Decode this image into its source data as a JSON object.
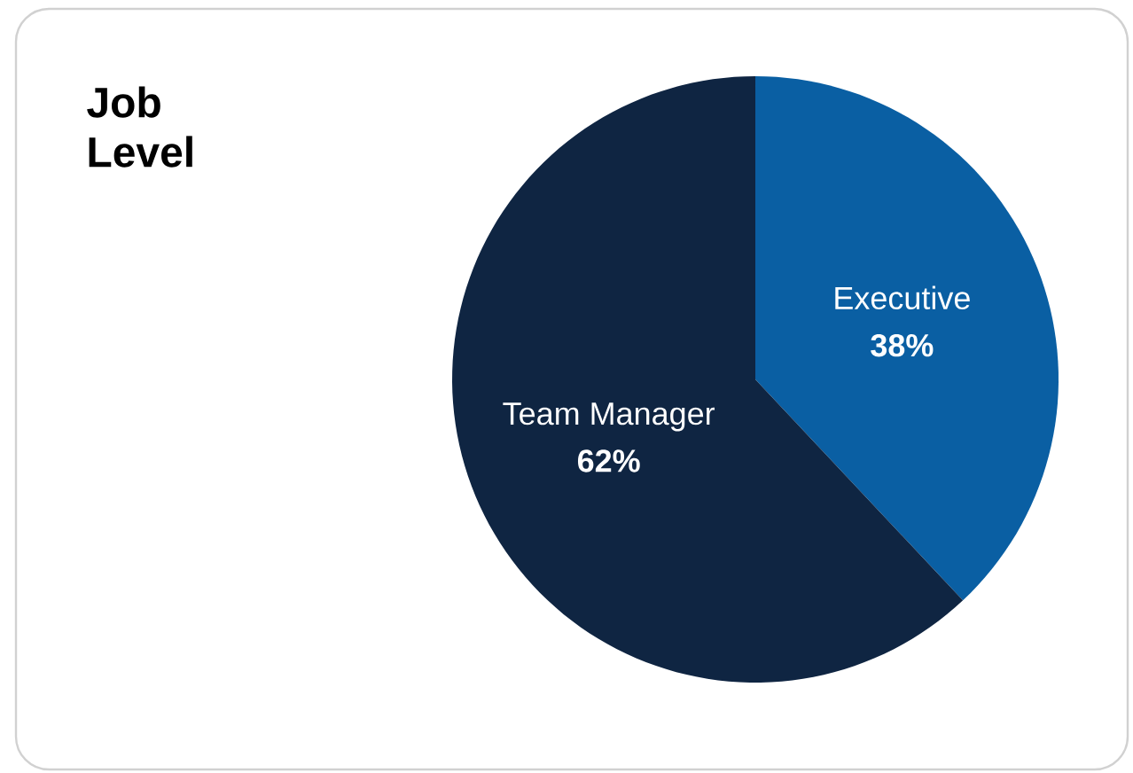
{
  "chart_data": {
    "type": "pie",
    "title": "Job Level",
    "categories": [
      "Executive",
      "Team Manager"
    ],
    "values": [
      38,
      62
    ],
    "colors": [
      "#0a5fa3",
      "#0f2542"
    ],
    "value_labels": [
      "38%",
      "62%"
    ]
  }
}
